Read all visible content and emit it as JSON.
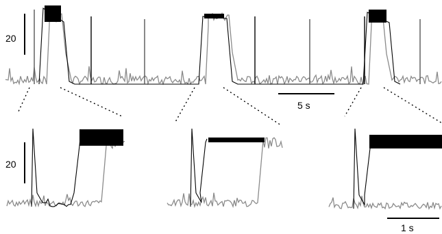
{
  "chart_data": {
    "type": "line",
    "colors": {
      "trace_a": "#000000",
      "trace_b": "#8a8a8a",
      "scale": "#000000",
      "guide": "#000000"
    },
    "top_panel": {
      "y_scale_label": "20",
      "time_scale_label": "5 s",
      "black_trace_blocks": [
        {
          "start": 63,
          "end": 95,
          "plateau_top": 8,
          "plateau_bottom": 32
        },
        {
          "start": 296,
          "end": 333,
          "plateau_top": 20,
          "plateau_bottom": 27
        },
        {
          "start": 536,
          "end": 570,
          "plateau_top": 14,
          "plateau_bottom": 33
        }
      ],
      "grey_trace_blocks": [
        {
          "start": 68,
          "end": 100,
          "plateau_top": 16,
          "plateau_bottom": 34
        },
        {
          "start": 300,
          "end": 343,
          "plateau_top": 18,
          "plateau_bottom": 30
        },
        {
          "start": 538,
          "end": 568,
          "plateau_top": 16,
          "plateau_bottom": 34
        }
      ],
      "spikes_x": [
        50,
        133,
        211,
        372,
        452,
        532,
        613
      ]
    },
    "bottom_panels": [
      {
        "y_scale_label": "20",
        "black_rise": 108,
        "black_plateau_top": 189,
        "black_plateau_bottom": 213,
        "grey_rise": 150,
        "grey_plateau_top": 198,
        "grey_plateau_bottom": 218
      },
      {
        "black_rise": 292,
        "black_plateau_top": 201,
        "black_plateau_bottom": 208,
        "grey_rise": 378,
        "grey_plateau_top": 201,
        "grey_plateau_bottom": 218
      },
      {
        "black_rise": 532,
        "black_plateau_top": 197,
        "black_plateau_bottom": 217,
        "grey_rise": null
      }
    ],
    "bottom_time_scale_label": "1 s"
  }
}
